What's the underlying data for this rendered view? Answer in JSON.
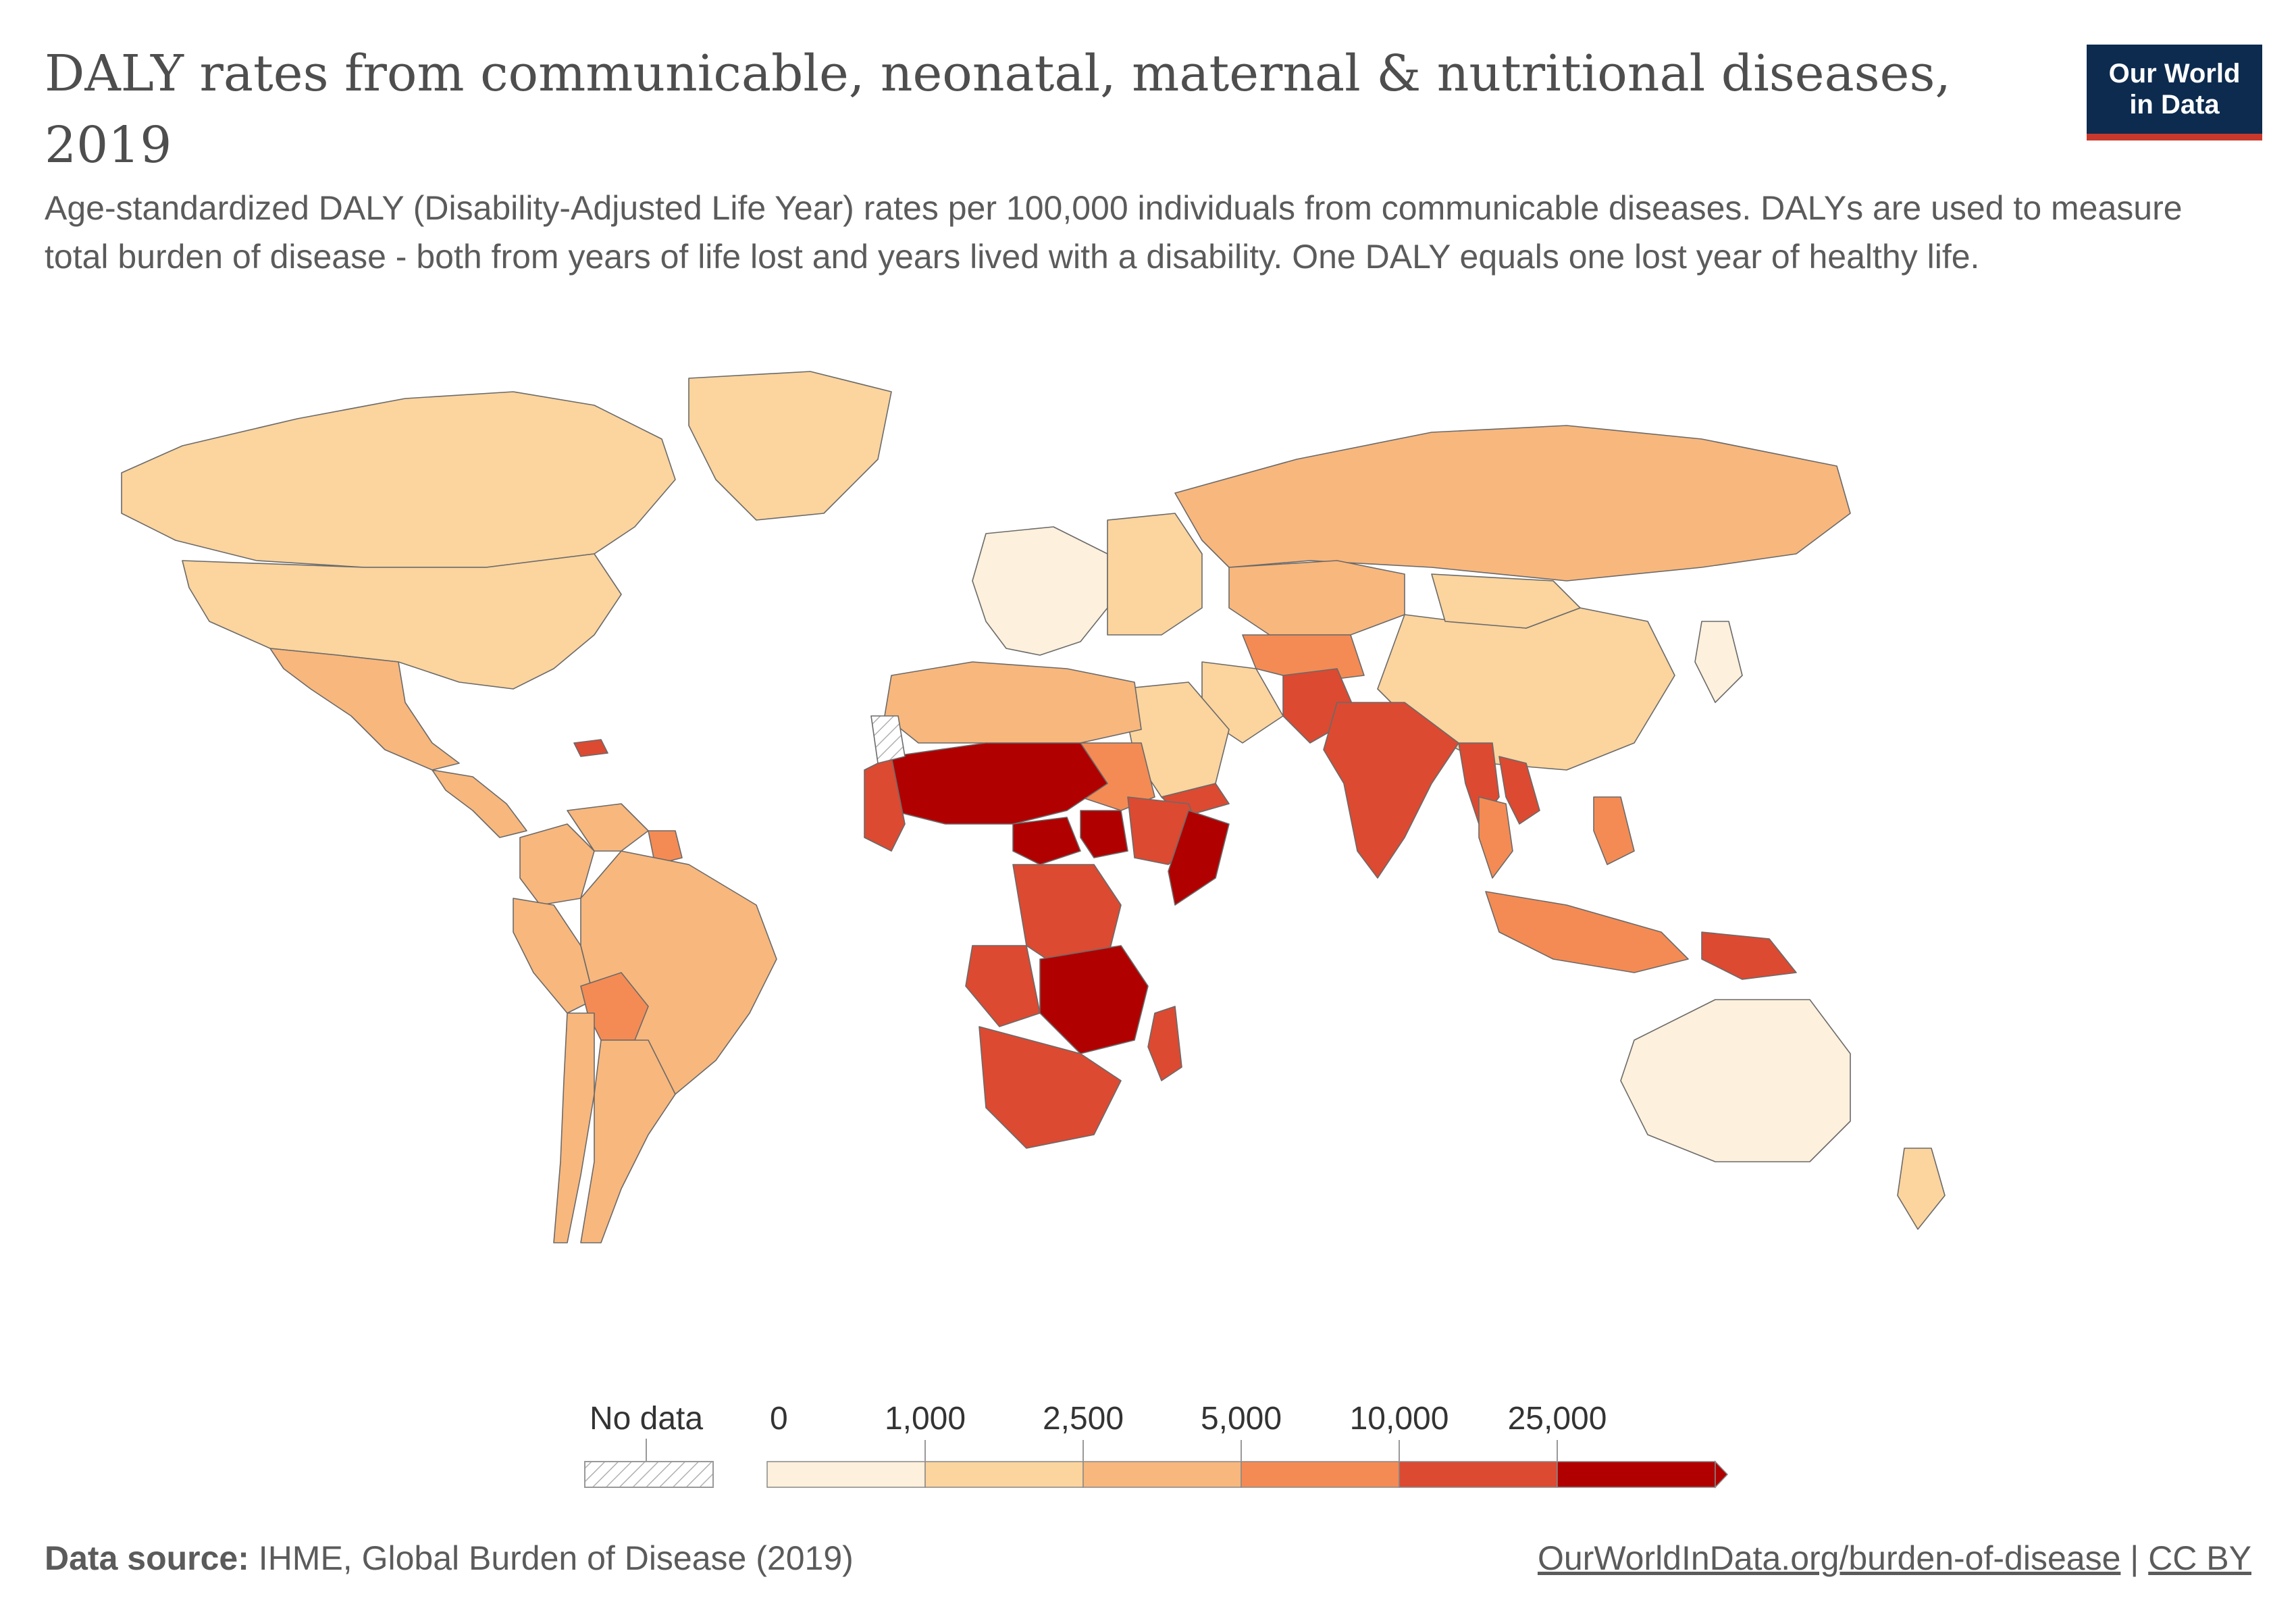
{
  "header": {
    "title": "DALY rates from communicable, neonatal, maternal & nutritional diseases, 2019",
    "subtitle": "Age-standardized DALY (Disability-Adjusted Life Year) rates per 100,000 individuals from communicable diseases. DALYs are used to measure total burden of disease - both from years of life lost and years lived with a disability. One DALY equals one lost year of healthy life.",
    "logo_line1": "Our World",
    "logo_line2": "in Data"
  },
  "legend": {
    "no_data_label": "No data",
    "ticks": [
      "0",
      "1,000",
      "2,500",
      "5,000",
      "10,000",
      "25,000"
    ],
    "colors": [
      "#fdf0dc",
      "#fbd49e",
      "#f8b77d",
      "#f48b54",
      "#dc4a32",
      "#b00000"
    ],
    "no_data_pattern": "hatched-gray"
  },
  "footer": {
    "source_label": "Data source:",
    "source_text": "IHME, Global Burden of Disease (2019)",
    "link_text": "OurWorldInData.org/burden-of-disease",
    "separator": "|",
    "license": "CC BY"
  },
  "map_data": {
    "type": "choropleth",
    "metric": "Age-standardized DALY rate per 100,000",
    "bins": [
      0,
      1000,
      2500,
      5000,
      10000,
      25000
    ],
    "regions": [
      {
        "name": "Canada",
        "bin": 1
      },
      {
        "name": "United States",
        "bin": 1
      },
      {
        "name": "Greenland",
        "bin": 1
      },
      {
        "name": "Mexico",
        "bin": 2
      },
      {
        "name": "Central America",
        "bin": 2
      },
      {
        "name": "Haiti",
        "bin": 4
      },
      {
        "name": "Colombia",
        "bin": 2
      },
      {
        "name": "Venezuela",
        "bin": 2
      },
      {
        "name": "Guyana",
        "bin": 3
      },
      {
        "name": "Peru",
        "bin": 2
      },
      {
        "name": "Brazil",
        "bin": 2
      },
      {
        "name": "Bolivia",
        "bin": 3
      },
      {
        "name": "Argentina",
        "bin": 2
      },
      {
        "name": "Chile",
        "bin": 2
      },
      {
        "name": "Western Europe",
        "bin": 0
      },
      {
        "name": "Eastern Europe",
        "bin": 1
      },
      {
        "name": "Russia",
        "bin": 2
      },
      {
        "name": "China",
        "bin": 1
      },
      {
        "name": "Mongolia",
        "bin": 1
      },
      {
        "name": "Kazakhstan",
        "bin": 2
      },
      {
        "name": "Central Asia",
        "bin": 3
      },
      {
        "name": "Iran",
        "bin": 1
      },
      {
        "name": "Saudi Arabia",
        "bin": 1
      },
      {
        "name": "Yemen",
        "bin": 4
      },
      {
        "name": "Pakistan",
        "bin": 4
      },
      {
        "name": "India",
        "bin": 4
      },
      {
        "name": "Myanmar",
        "bin": 4
      },
      {
        "name": "Laos",
        "bin": 4
      },
      {
        "name": "Thailand",
        "bin": 3
      },
      {
        "name": "Indonesia",
        "bin": 3
      },
      {
        "name": "Philippines",
        "bin": 3
      },
      {
        "name": "Papua New Guinea",
        "bin": 4
      },
      {
        "name": "Japan",
        "bin": 0
      },
      {
        "name": "Australia",
        "bin": 0
      },
      {
        "name": "New Zealand",
        "bin": 1
      },
      {
        "name": "North Africa",
        "bin": 2
      },
      {
        "name": "Sudan",
        "bin": 3
      },
      {
        "name": "Sahel",
        "bin": 5
      },
      {
        "name": "West Africa coast",
        "bin": 4
      },
      {
        "name": "Central African Republic",
        "bin": 5
      },
      {
        "name": "South Sudan",
        "bin": 5
      },
      {
        "name": "Ethiopia",
        "bin": 4
      },
      {
        "name": "Somalia",
        "bin": 5
      },
      {
        "name": "DR Congo",
        "bin": 4
      },
      {
        "name": "Angola",
        "bin": 4
      },
      {
        "name": "Zambia Mozambique",
        "bin": 5
      },
      {
        "name": "Southern Africa",
        "bin": 4
      },
      {
        "name": "Madagascar",
        "bin": 4
      },
      {
        "name": "Western Sahara",
        "bin": -1
      }
    ]
  }
}
